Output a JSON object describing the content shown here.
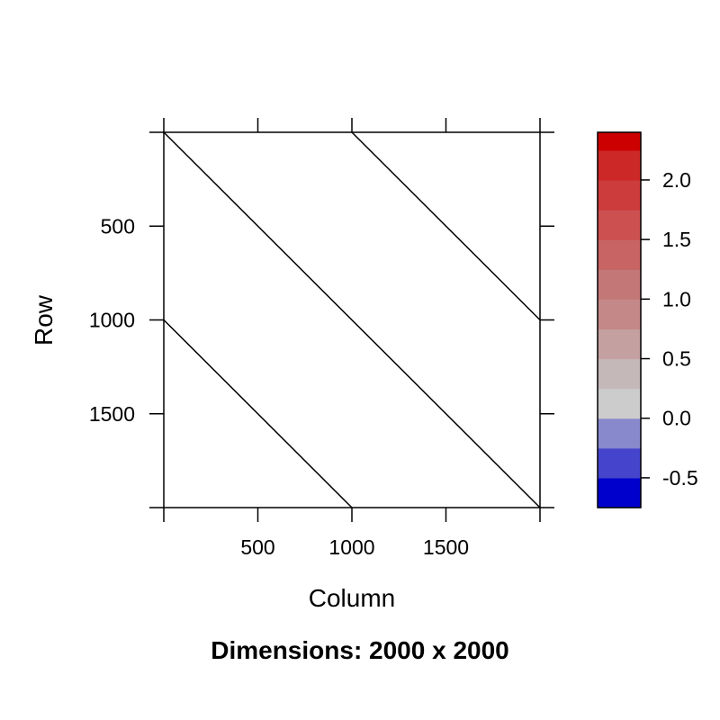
{
  "chart_data": {
    "type": "heatmap",
    "title": "",
    "xlabel": "Column",
    "ylabel": "Row",
    "caption": "Dimensions: 2000 x 2000",
    "dimensions": {
      "rows": 2000,
      "columns": 2000
    },
    "x_range": [
      0,
      2000
    ],
    "y_range": [
      0,
      2000
    ],
    "y_reversed": true,
    "x_ticks": [
      500,
      1000,
      1500
    ],
    "y_ticks": [
      500,
      1000,
      1500
    ],
    "grid": false,
    "matrix_value": 0.0,
    "contour_lines": [
      {
        "from": {
          "column": 0,
          "row": 0
        },
        "to": {
          "column": 2000,
          "row": 2000
        }
      },
      {
        "from": {
          "column": 1000,
          "row": 0
        },
        "to": {
          "column": 2000,
          "row": 1000
        }
      },
      {
        "from": {
          "column": 0,
          "row": 1000
        },
        "to": {
          "column": 1000,
          "row": 2000
        }
      }
    ],
    "colorkey": {
      "placement": "right",
      "range": [
        -0.75,
        2.4
      ],
      "ticks": [
        -0.5,
        0.0,
        0.5,
        1.0,
        1.5,
        2.0
      ],
      "tick_labels": [
        "-0.5",
        "0.0",
        "0.5",
        "1.0",
        "1.5",
        "2.0"
      ],
      "bins": [
        {
          "from": -0.75,
          "to": -0.5,
          "color": "#0000cc"
        },
        {
          "from": -0.5,
          "to": -0.25,
          "color": "#4444cc"
        },
        {
          "from": -0.25,
          "to": 0.0,
          "color": "#8888cc"
        },
        {
          "from": 0.0,
          "to": 0.25,
          "color": "#cccccc"
        },
        {
          "from": 0.25,
          "to": 0.5,
          "color": "#c4b8b8"
        },
        {
          "from": 0.5,
          "to": 0.75,
          "color": "#c4a0a0"
        },
        {
          "from": 0.75,
          "to": 1.0,
          "color": "#c48888"
        },
        {
          "from": 1.0,
          "to": 1.25,
          "color": "#c47777"
        },
        {
          "from": 1.25,
          "to": 1.5,
          "color": "#c86464"
        },
        {
          "from": 1.5,
          "to": 1.75,
          "color": "#cc5050"
        },
        {
          "from": 1.75,
          "to": 2.0,
          "color": "#cc3c3c"
        },
        {
          "from": 2.0,
          "to": 2.25,
          "color": "#cc2828"
        },
        {
          "from": 2.25,
          "to": 2.4,
          "color": "#cc0000"
        }
      ]
    }
  },
  "colors": {
    "matrix_fill": "#ffffff",
    "axis": "#000000",
    "contour": "#000000"
  }
}
